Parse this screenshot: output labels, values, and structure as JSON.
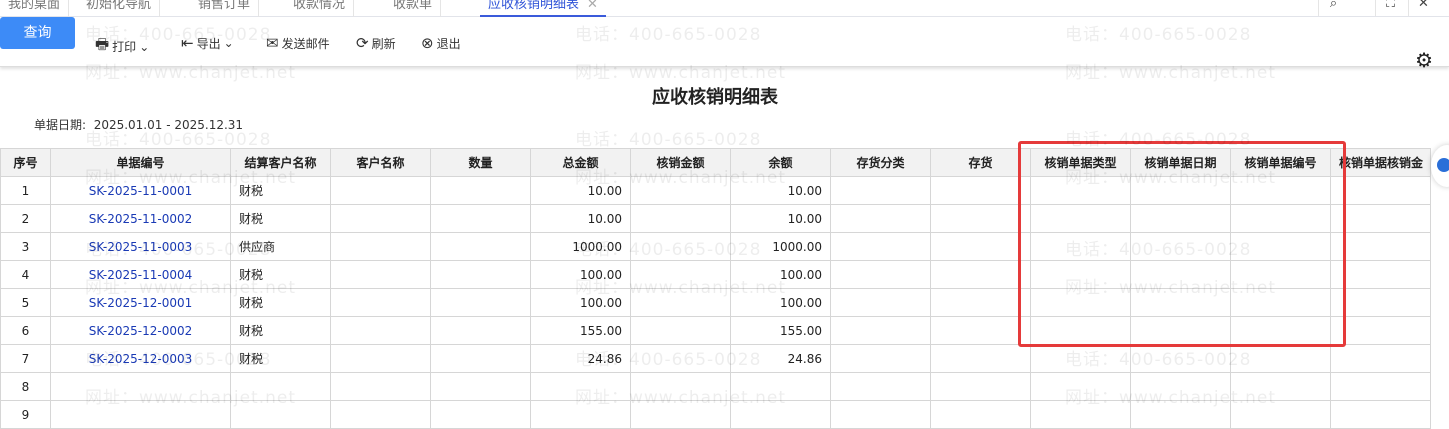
{
  "tabs": [
    {
      "label": "我的桌面"
    },
    {
      "label": "初始化导航"
    },
    {
      "label": "销售订单"
    },
    {
      "label": "收款情况"
    },
    {
      "label": "收款单"
    },
    {
      "label": "应收核销明细表",
      "active": true
    }
  ],
  "tab_close": "✕",
  "window": {
    "search": "⌕",
    "maximize": "⛶",
    "close": "✕"
  },
  "toolbar": {
    "query": "查询",
    "print": "打印",
    "export": "导出",
    "email": "发送邮件",
    "refresh": "刷新",
    "exit": "退出"
  },
  "report": {
    "title": "应收核销明细表",
    "date_label": "单据日期:",
    "date_range": "2025.01.01 - 2025.12.31"
  },
  "columns": [
    "序号",
    "单据编号",
    "结算客户名称",
    "客户名称",
    "数量",
    "总金额",
    "核销金额",
    "余额",
    "存货分类",
    "存货",
    "核销单据类型",
    "核销单据日期",
    "核销单据编号",
    "核销单据核销金"
  ],
  "rows": [
    [
      "1",
      "SK-2025-11-0001",
      "财税",
      "",
      "",
      "10.00",
      "",
      "10.00",
      "",
      "",
      "",
      "",
      "",
      ""
    ],
    [
      "2",
      "SK-2025-11-0002",
      "财税",
      "",
      "",
      "10.00",
      "",
      "10.00",
      "",
      "",
      "",
      "",
      "",
      ""
    ],
    [
      "3",
      "SK-2025-11-0003",
      "供应商",
      "",
      "",
      "1000.00",
      "",
      "1000.00",
      "",
      "",
      "",
      "",
      "",
      ""
    ],
    [
      "4",
      "SK-2025-11-0004",
      "财税",
      "",
      "",
      "100.00",
      "",
      "100.00",
      "",
      "",
      "",
      "",
      "",
      ""
    ],
    [
      "5",
      "SK-2025-12-0001",
      "财税",
      "",
      "",
      "100.00",
      "",
      "100.00",
      "",
      "",
      "",
      "",
      "",
      ""
    ],
    [
      "6",
      "SK-2025-12-0002",
      "财税",
      "",
      "",
      "155.00",
      "",
      "155.00",
      "",
      "",
      "",
      "",
      "",
      ""
    ],
    [
      "7",
      "SK-2025-12-0003",
      "财税",
      "",
      "",
      "24.86",
      "",
      "24.86",
      "",
      "",
      "",
      "",
      "",
      ""
    ],
    [
      "8",
      "",
      "",
      "",
      "",
      "",
      "",
      "",
      "",
      "",
      "",
      "",
      "",
      ""
    ],
    [
      "9",
      "",
      "",
      "",
      "",
      "",
      "",
      "",
      "",
      "",
      "",
      "",
      "",
      ""
    ]
  ],
  "watermark": {
    "phone": "电话：400-665-0028",
    "site": "网址：www.chanjet.net"
  },
  "colors": {
    "accent": "#3d8bf7",
    "highlight_box": "#e53a3a",
    "link": "#1a3ab5"
  }
}
